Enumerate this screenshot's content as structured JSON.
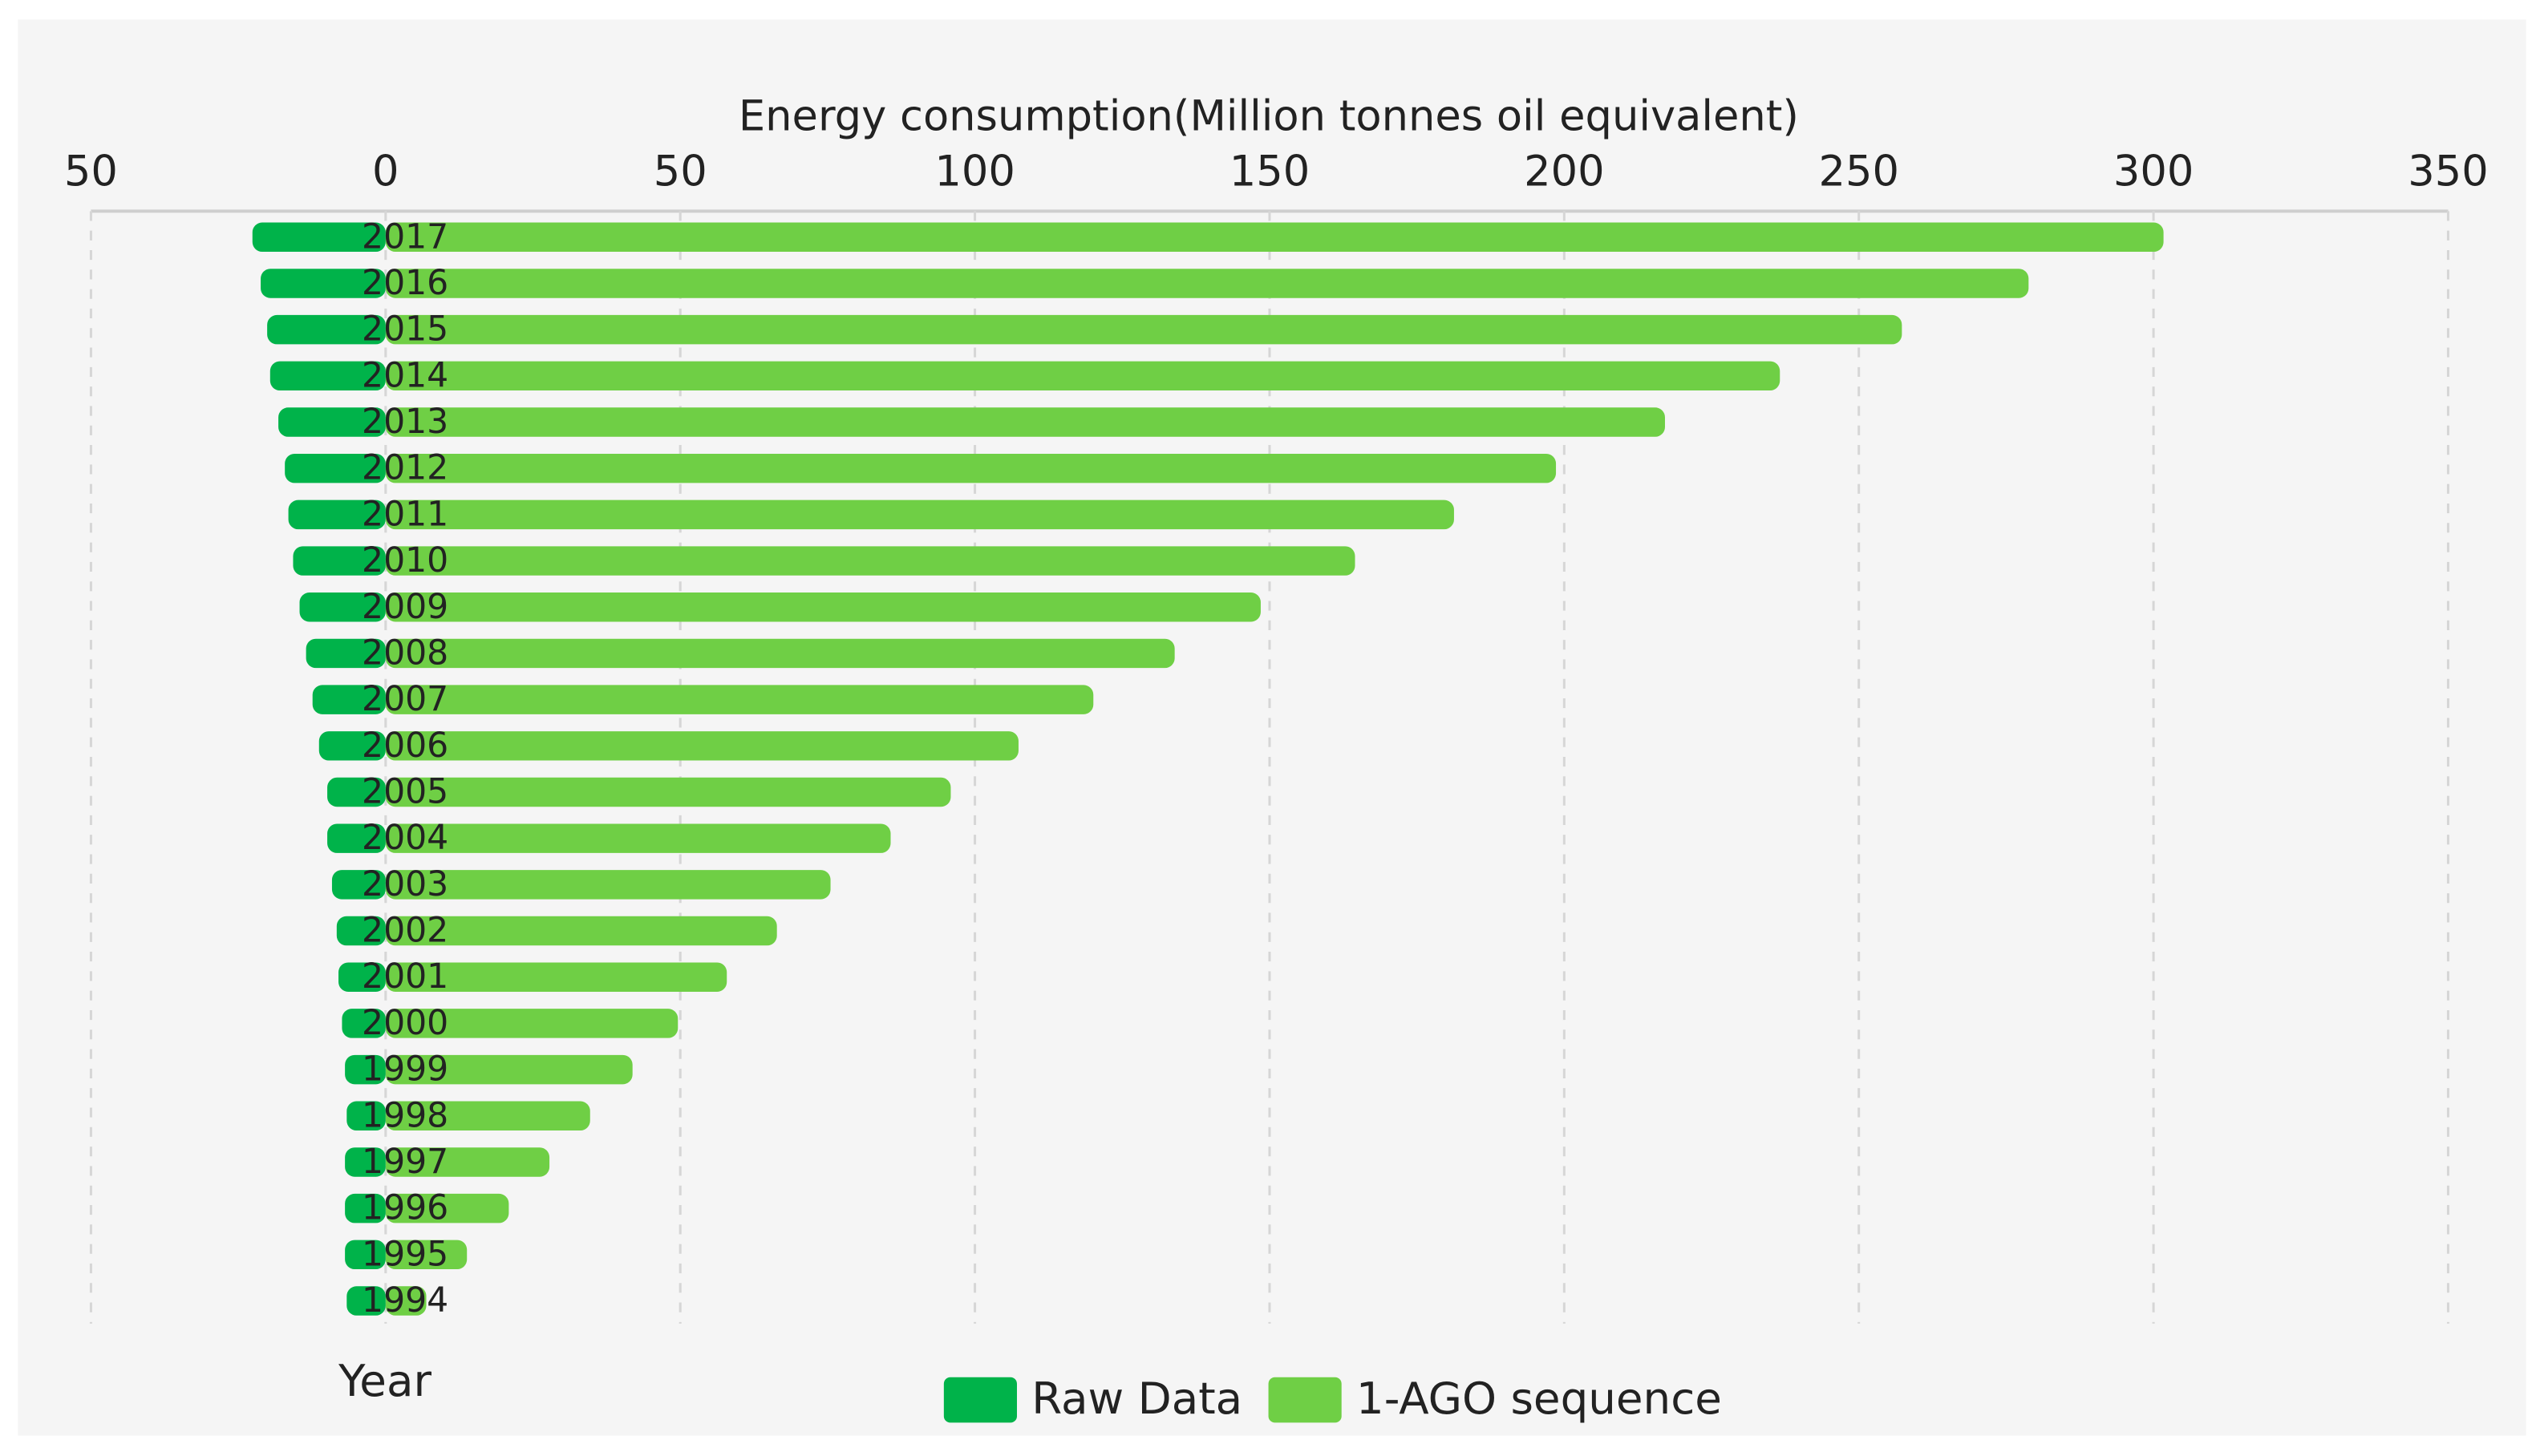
{
  "chart_data": {
    "type": "bar",
    "orientation": "horizontal",
    "xlabel": "Energy consumption(Million tonnes oil equivalent)",
    "ylabel": "Year",
    "categories": [
      "2017",
      "2016",
      "2015",
      "2014",
      "2013",
      "2012",
      "2011",
      "2010",
      "2009",
      "2008",
      "2007",
      "2006",
      "2005",
      "2004",
      "2003",
      "2002",
      "2001",
      "2000",
      "1999",
      "1998",
      "1997",
      "1996",
      "1995",
      "1994"
    ],
    "series": [
      {
        "name": "Raw Data",
        "color": "#00b34a",
        "values": [
          -22.6,
          -21.2,
          -20.1,
          -19.6,
          -18.2,
          -17.1,
          -16.5,
          -15.7,
          -14.6,
          -13.5,
          -12.4,
          -11.3,
          -9.9,
          -9.9,
          -9.1,
          -8.3,
          -8.0,
          -7.4,
          -6.9,
          -6.6,
          -6.9,
          -6.9,
          -6.9,
          -6.6
        ]
      },
      {
        "name": "1-AGO sequence",
        "color": "#6fcf45",
        "values": [
          301.7,
          278.8,
          257.3,
          236.6,
          217.1,
          198.6,
          181.3,
          164.5,
          148.5,
          133.9,
          120.1,
          107.4,
          95.9,
          85.7,
          75.5,
          66.4,
          57.9,
          49.6,
          41.9,
          34.7,
          27.8,
          20.9,
          13.8,
          6.9
        ]
      }
    ],
    "xlim": [
      -50,
      350
    ],
    "xticks": [
      {
        "value": -50,
        "label": "50"
      },
      0,
      50,
      100,
      150,
      200,
      250,
      300,
      350
    ],
    "grid": true,
    "legend": "bottom"
  }
}
